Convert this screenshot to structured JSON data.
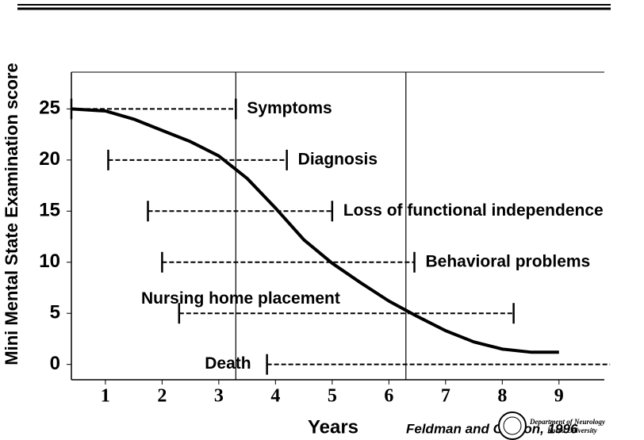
{
  "chart_data": {
    "type": "line",
    "y_label": "Mini Mental State Examination score",
    "x_label": "Years",
    "source": "Feldman and Gracon, 1996",
    "logo_text": [
      "Department of Neurology",
      "Korea University"
    ],
    "x": [
      0.4,
      1,
      1.5,
      2,
      2.5,
      3,
      3.5,
      4,
      4.5,
      5,
      5.5,
      6,
      6.5,
      7,
      7.5,
      8,
      8.5,
      9
    ],
    "values": [
      25,
      24.8,
      24,
      22.9,
      21.8,
      20.4,
      18.2,
      15.3,
      12.2,
      9.9,
      8,
      6.2,
      4.7,
      3.3,
      2.2,
      1.5,
      1.2,
      1.2
    ],
    "color": "#000000",
    "xlim": [
      0.4,
      9.8
    ],
    "ylim": [
      -1.5,
      28.6
    ],
    "xticks": [
      1,
      2,
      3,
      4,
      5,
      6,
      7,
      8,
      9
    ],
    "yticks": [
      0,
      5,
      10,
      15,
      20,
      25
    ],
    "vlines": [
      3.3,
      6.3
    ],
    "intervals": [
      {
        "label": "Symptoms",
        "start": 0.4,
        "end": 3.3,
        "y": 25
      },
      {
        "label": "Diagnosis",
        "start": 1.05,
        "end": 4.2,
        "y": 20
      },
      {
        "label": "Loss of functional independence",
        "start": 1.75,
        "end": 5.0,
        "y": 15
      },
      {
        "label": "Behavioral problems",
        "start": 2.0,
        "end": 6.45,
        "y": 10
      },
      {
        "label": "Nursing home placement",
        "start": 2.3,
        "end": 8.2,
        "y": 5
      },
      {
        "label": "Death",
        "start": 3.85,
        "end": 9.9,
        "y": 0
      }
    ]
  }
}
